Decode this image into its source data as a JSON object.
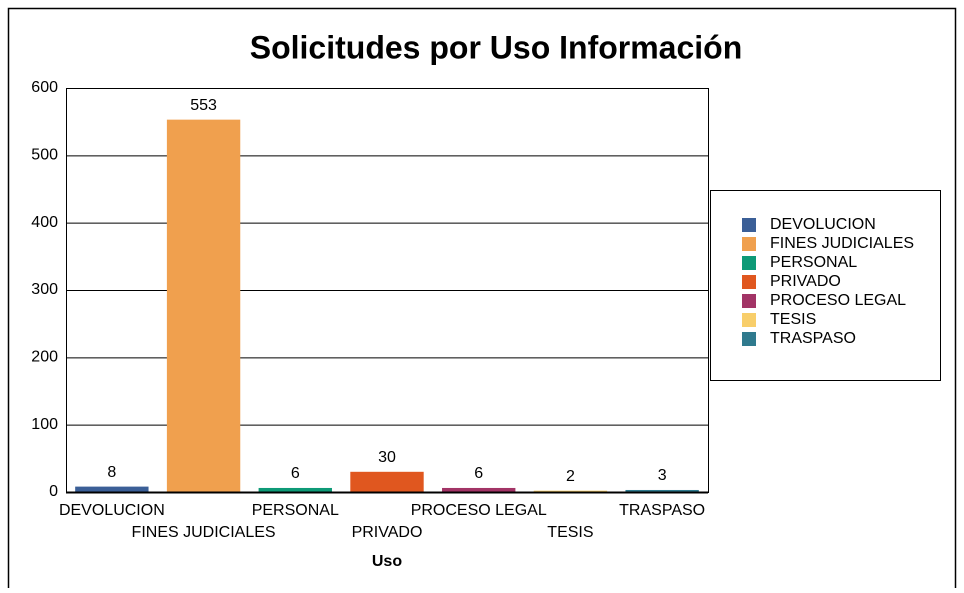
{
  "chart_data": {
    "type": "bar",
    "title": "Solicitudes por Uso Información",
    "x_label": "Uso",
    "categories": [
      "DEVOLUCION",
      "FINES JUDICIALES",
      "PERSONAL",
      "PRIVADO",
      "PROCESO LEGAL",
      "TESIS",
      "TRASPASO"
    ],
    "values": [
      8,
      553,
      6,
      30,
      6,
      2,
      3
    ],
    "colors": [
      "#3b5f97",
      "#f0a04e",
      "#0e9a77",
      "#e0571f",
      "#a23466",
      "#f8ce6a",
      "#2f7a8e"
    ],
    "ylim": [
      0,
      600
    ],
    "yticks": [
      0,
      100,
      200,
      300,
      400,
      500,
      600
    ],
    "grid": true,
    "legend": "right"
  }
}
